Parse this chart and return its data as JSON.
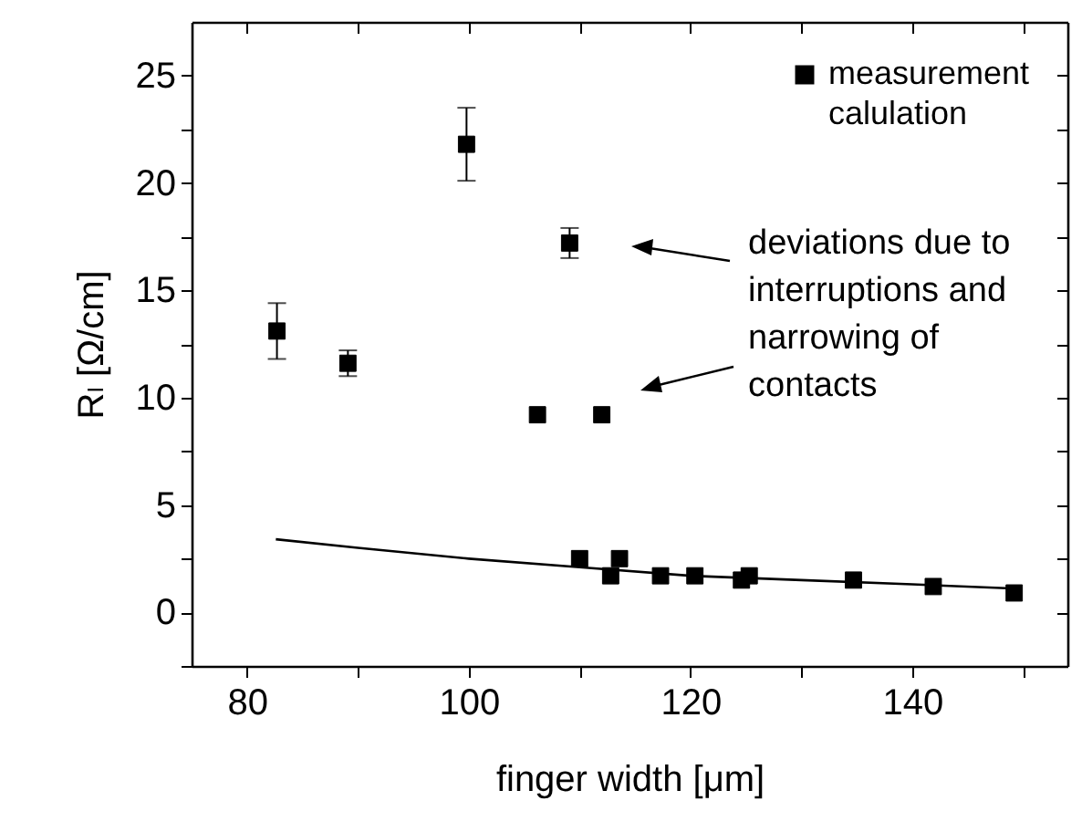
{
  "chart_data": {
    "type": "scatter",
    "xlabel": "finger width [μm]",
    "ylabel": "Rₗ [Ω/cm]",
    "annotations": [
      "deviations due to interruptions and narrowing of contacts"
    ],
    "xlim": [
      75,
      154
    ],
    "xticks": [
      80,
      {
        "value": 90,
        "label": null
      },
      100,
      {
        "value": 110,
        "label": null
      },
      120,
      {
        "value": 130,
        "label": null
      },
      140,
      {
        "value": 150,
        "label": null
      }
    ],
    "ylim": [
      -2.5,
      27.5
    ],
    "yticks": [
      {
        "value": -2.5,
        "label": null
      },
      0,
      {
        "value": 2.5,
        "label": null
      },
      5,
      {
        "value": 7.5,
        "label": null
      },
      10,
      {
        "value": 12.5,
        "label": null
      },
      15,
      {
        "value": 17.5,
        "label": null
      },
      20,
      {
        "value": 22.5,
        "label": null
      },
      25
    ],
    "legend": "top right",
    "series": [
      {
        "name": "measurement",
        "color": "#000000",
        "marker": "square",
        "x": [
          82.7,
          89.1,
          99.8,
          109.1,
          106.2,
          112.0,
          110.0,
          112.8,
          113.6,
          117.3,
          120.4,
          124.6,
          125.3,
          134.7,
          141.9,
          149.2
        ],
        "values": [
          13.1,
          11.6,
          21.8,
          17.2,
          9.2,
          9.2,
          2.5,
          1.7,
          2.5,
          1.7,
          1.7,
          1.5,
          1.7,
          1.5,
          1.2,
          0.9
        ],
        "errors": [
          1.3,
          0.6,
          1.7,
          0.7,
          null,
          null,
          null,
          null,
          null,
          null,
          null,
          null,
          null,
          null,
          null,
          null
        ]
      },
      {
        "name": "calulation",
        "type": "line",
        "color": "#000000",
        "x": [
          82.6,
          90,
          100,
          110,
          120,
          130,
          140,
          149.5
        ],
        "values": [
          3.4,
          3.0,
          2.5,
          2.1,
          1.7,
          1.5,
          1.3,
          1.1
        ]
      }
    ]
  }
}
